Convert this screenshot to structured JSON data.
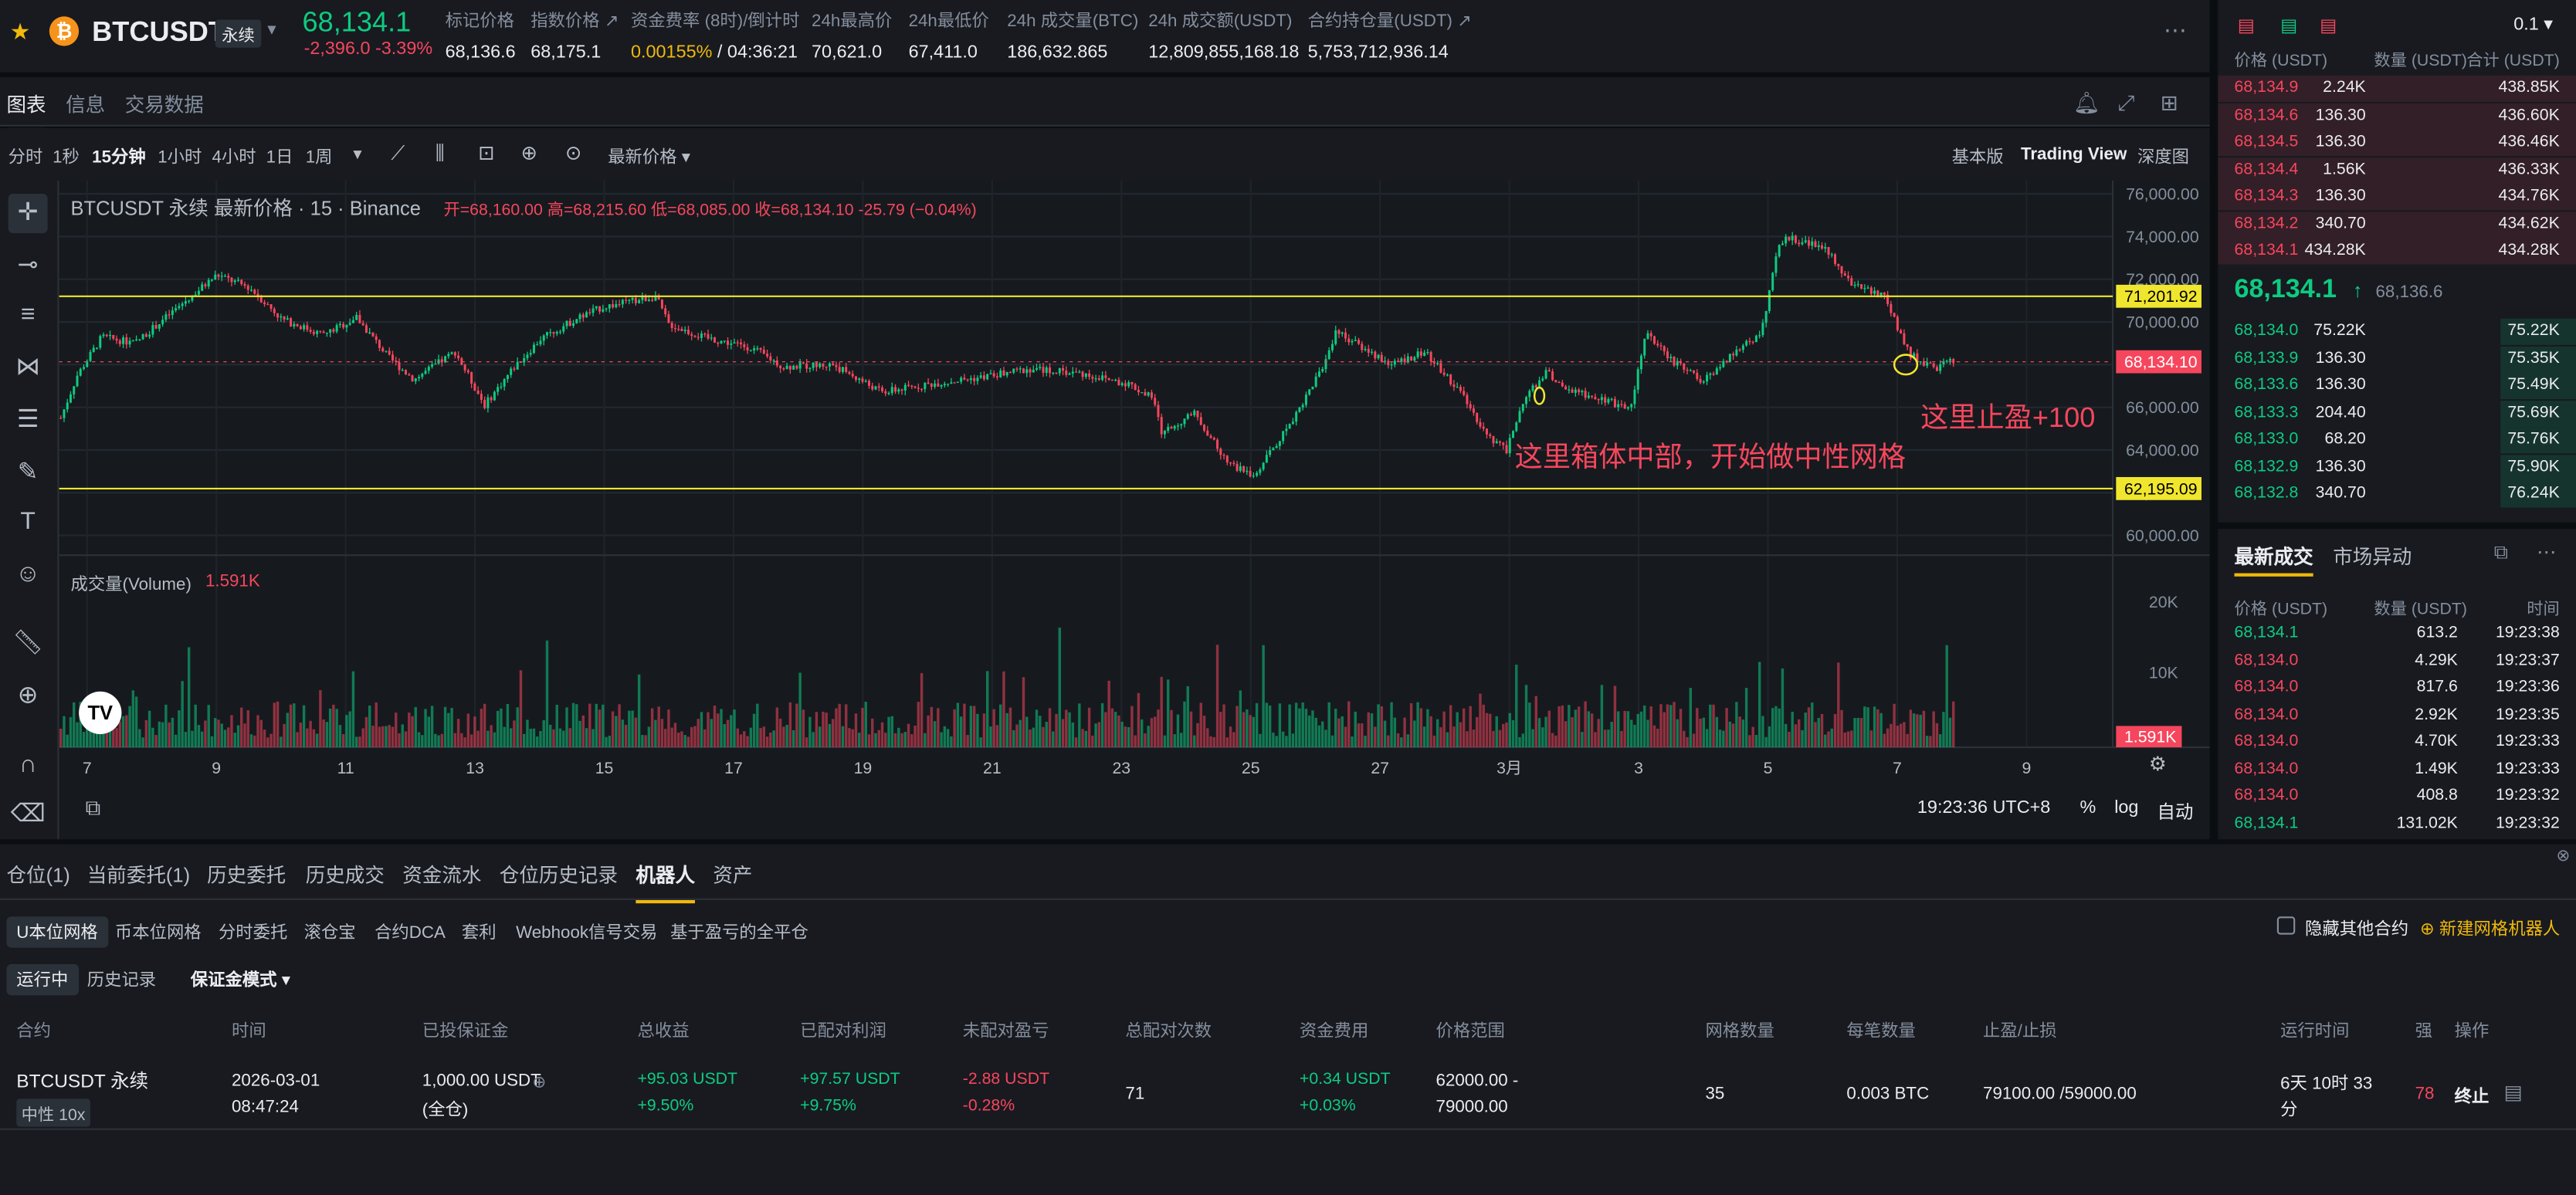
{
  "header": {
    "symbol": "BTCUSDT",
    "perp_tag": "永续",
    "last_price": "68,134.1",
    "change": "-2,396.0 -3.39%",
    "stats": [
      {
        "label": "标记价格",
        "value": "68,136.6"
      },
      {
        "label": "指数价格 ↗",
        "value": "68,175.1"
      },
      {
        "label": "资金费率 (8时)/倒计时",
        "value_a": "0.00155%",
        "value_b": "/ 04:36:21"
      },
      {
        "label": "24h最高价",
        "value": "70,621.0"
      },
      {
        "label": "24h最低价",
        "value": "67,411.0"
      },
      {
        "label": "24h 成交量(BTC)",
        "value": "186,632.865"
      },
      {
        "label": "24h 成交额(USDT)",
        "value": "12,809,855,168.18"
      },
      {
        "label": "合约持仓量(USDT) ↗",
        "value": "5,753,712,936.14"
      }
    ]
  },
  "chart_tabs": [
    "图表",
    "信息",
    "交易数据"
  ],
  "toolbar": {
    "intervals": [
      "分时",
      "1秒",
      "15分钟",
      "1小时",
      "4小时",
      "1日",
      "1周"
    ],
    "price_type": "最新价格 ▾",
    "views": [
      "基本版",
      "Trading View",
      "深度图"
    ]
  },
  "chart": {
    "legend_title": "BTCUSDT 永续 最新价格 · 15 · Binance",
    "ohlc": "开=68,160.00  高=68,215.60  低=68,085.00  收=68,134.10  -25.79 (−0.04%)",
    "price_ticks": [
      "76,000.00",
      "74,000.00",
      "72,000.00",
      "70,000.00",
      "68,000.00",
      "66,000.00",
      "64,000.00",
      "62,000.00",
      "60,000.00"
    ],
    "upper_line": "71,201.92",
    "lower_line": "62,195.09",
    "current_tag": "68,134.10",
    "volume_label": "成交量(Volume)",
    "volume_value": "1.591K",
    "volume_ticks": [
      "20K",
      "10K"
    ],
    "volume_tag": "1.591K",
    "date_ticks": [
      "7",
      "9",
      "11",
      "13",
      "15",
      "17",
      "19",
      "21",
      "23",
      "25",
      "27",
      "3月",
      "3",
      "5",
      "7",
      "9"
    ],
    "annotation_1": "这里止盈+100",
    "annotation_2": "这里箱体中部，开始做中性网格",
    "time": "19:23:36 UTC+8",
    "scale_opts": [
      "%",
      "log",
      "自动"
    ]
  },
  "orderbook": {
    "tick": "0.1 ▾",
    "headers": [
      "价格 (USDT)",
      "数量 (USDT)",
      "合计 (USDT)"
    ],
    "asks": [
      [
        "68,134.9",
        "2.24K",
        "438.85K"
      ],
      [
        "68,134.6",
        "136.30",
        "436.60K"
      ],
      [
        "68,134.5",
        "136.30",
        "436.46K"
      ],
      [
        "68,134.4",
        "1.56K",
        "436.33K"
      ],
      [
        "68,134.3",
        "136.30",
        "434.76K"
      ],
      [
        "68,134.2",
        "340.70",
        "434.62K"
      ],
      [
        "68,134.1",
        "434.28K",
        "434.28K"
      ]
    ],
    "mid": "68,134.1",
    "mid_arrow": "↑",
    "mid_mark": "68,136.6",
    "bids": [
      [
        "68,134.0",
        "75.22K",
        "75.22K"
      ],
      [
        "68,133.9",
        "136.30",
        "75.35K"
      ],
      [
        "68,133.6",
        "136.30",
        "75.49K"
      ],
      [
        "68,133.3",
        "204.40",
        "75.69K"
      ],
      [
        "68,133.0",
        "68.20",
        "75.76K"
      ],
      [
        "68,132.9",
        "136.30",
        "75.90K"
      ],
      [
        "68,132.8",
        "340.70",
        "76.24K"
      ]
    ]
  },
  "trades": {
    "tabs": [
      "最新成交",
      "市场异动"
    ],
    "headers": [
      "价格 (USDT)",
      "数量 (USDT)",
      "时间"
    ],
    "rows": [
      [
        "68,134.1",
        "613.2",
        "19:23:38",
        "g"
      ],
      [
        "68,134.0",
        "4.29K",
        "19:23:37",
        "r"
      ],
      [
        "68,134.0",
        "817.6",
        "19:23:36",
        "r"
      ],
      [
        "68,134.0",
        "2.92K",
        "19:23:35",
        "r"
      ],
      [
        "68,134.0",
        "4.70K",
        "19:23:33",
        "r"
      ],
      [
        "68,134.0",
        "1.49K",
        "19:23:33",
        "r"
      ],
      [
        "68,134.0",
        "408.8",
        "19:23:32",
        "r"
      ],
      [
        "68,134.1",
        "131.02K",
        "19:23:32",
        "g"
      ]
    ]
  },
  "bottom": {
    "tabs": [
      "仓位(1)",
      "当前委托(1)",
      "历史委托",
      "历史成交",
      "资金流水",
      "仓位历史记录",
      "机器人",
      "资产"
    ],
    "subtabs": [
      "U本位网格",
      "币本位网格",
      "分时委托",
      "滚仓宝",
      "合约DCA",
      "套利",
      "Webhook信号交易",
      "基于盈亏的全平仓"
    ],
    "hide_other": "隐藏其他合约",
    "new_bot": "⊕ 新建网格机器人",
    "filters": [
      "运行中",
      "历史记录"
    ],
    "margin_mode": "保证金模式 ▾",
    "columns": [
      "合约",
      "时间",
      "已投保证金",
      "总收益",
      "已配对利润",
      "未配对盈亏",
      "总配对次数",
      "资金费用",
      "价格范围",
      "网格数量",
      "每笔数量",
      "止盈/止损",
      "运行时间",
      "强",
      "操作"
    ],
    "row": {
      "contract": "BTCUSDT 永续",
      "tag": "中性 10x",
      "date": "2026-03-01",
      "time": "08:47:24",
      "margin": "1,000.00 USDT",
      "margin_sub": "(全仓)",
      "total_pnl": "+95.03 USDT",
      "total_pnl_pct": "+9.50%",
      "paired": "+97.57 USDT",
      "paired_pct": "+9.75%",
      "unpaired": "-2.88 USDT",
      "unpaired_pct": "-0.28%",
      "pairs": "71",
      "funding": "+0.34 USDT",
      "funding_pct": "+0.03%",
      "range_a": "62000.00 -",
      "range_b": "79000.00",
      "grids": "35",
      "qty": "0.003 BTC",
      "tpsl": "79100.00 /59000.00",
      "runtime_a": "6天 10时 33",
      "runtime_b": "分",
      "liq": "78",
      "action": "终止"
    }
  }
}
